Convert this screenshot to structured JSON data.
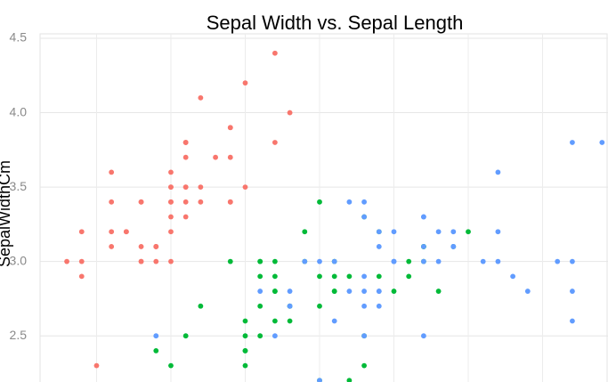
{
  "chart_data": {
    "type": "scatter",
    "title": "Sepal Width vs. Sepal Length",
    "y_label": "SepalWidthCm",
    "xlim": [
      4.12,
      7.94
    ],
    "ylim": [
      2.19,
      4.53
    ],
    "xticks": [
      4.5,
      5,
      5.5,
      6,
      6.5,
      7,
      7.5
    ],
    "yticks": [
      {
        "value": 2.5,
        "label": "2.5"
      },
      {
        "value": 3,
        "label": "3.0"
      },
      {
        "value": 3.5,
        "label": "3.5"
      },
      {
        "value": 4,
        "label": "4.0"
      },
      {
        "value": 4.5,
        "label": "4.5"
      }
    ],
    "grid": true,
    "series": [
      {
        "color": "#F8766D",
        "x": [
          5.1,
          4.9,
          4.7,
          4.6,
          5.0,
          5.4,
          4.6,
          5.0,
          4.4,
          4.9,
          5.4,
          4.8,
          4.8,
          4.3,
          5.8,
          5.7,
          5.4,
          5.1,
          5.7,
          5.1,
          5.4,
          5.1,
          4.6,
          5.1,
          4.8,
          5.0,
          5.0,
          5.2,
          5.2,
          4.7,
          4.8,
          5.4,
          5.2,
          5.5,
          4.9,
          5.0,
          5.5,
          4.9,
          4.4,
          5.1,
          5.0,
          4.5,
          4.4,
          5.0,
          5.1,
          4.8,
          5.1,
          4.6,
          5.3,
          5.0
        ],
        "values": [
          3.5,
          3.0,
          3.2,
          3.1,
          3.6,
          3.9,
          3.4,
          3.4,
          2.9,
          3.1,
          3.7,
          3.4,
          3.0,
          3.0,
          4.0,
          4.4,
          3.9,
          3.5,
          3.8,
          3.8,
          3.4,
          3.7,
          3.6,
          3.3,
          3.4,
          3.0,
          3.4,
          3.5,
          3.4,
          3.2,
          3.1,
          3.4,
          4.1,
          4.2,
          3.1,
          3.2,
          3.5,
          3.1,
          3.0,
          3.4,
          3.5,
          2.3,
          3.2,
          3.5,
          3.8,
          3.0,
          3.8,
          3.2,
          3.7,
          3.3
        ]
      },
      {
        "color": "#00BA38",
        "x": [
          7.0,
          6.4,
          6.9,
          5.5,
          6.5,
          5.7,
          6.3,
          4.9,
          6.6,
          5.2,
          5.9,
          6.0,
          6.1,
          5.6,
          6.7,
          5.6,
          5.8,
          6.2,
          5.6,
          5.9,
          6.1,
          6.3,
          6.1,
          6.4,
          6.6,
          6.8,
          6.7,
          6.0,
          5.7,
          5.5,
          5.5,
          5.8,
          6.0,
          5.4,
          6.0,
          6.7,
          6.3,
          5.6,
          5.5,
          5.5,
          6.1,
          5.8,
          5.0,
          5.6,
          5.7,
          5.7,
          6.2,
          5.1,
          5.7
        ],
        "values": [
          3.2,
          3.2,
          3.1,
          2.3,
          2.8,
          2.8,
          3.3,
          2.4,
          2.9,
          2.7,
          3.0,
          2.2,
          2.9,
          2.9,
          3.1,
          3.0,
          2.7,
          2.2,
          2.5,
          3.2,
          2.8,
          2.5,
          2.8,
          2.9,
          3.0,
          2.8,
          3.0,
          2.9,
          2.6,
          2.4,
          2.4,
          2.7,
          2.7,
          3.0,
          3.4,
          3.1,
          2.3,
          3.0,
          2.5,
          2.6,
          3.0,
          2.6,
          2.3,
          2.7,
          3.0,
          2.9,
          2.9,
          2.5,
          2.8
        ]
      },
      {
        "color": "#619CFF",
        "x": [
          6.3,
          5.8,
          7.1,
          6.3,
          6.5,
          7.6,
          4.9,
          7.3,
          6.7,
          7.2,
          6.5,
          6.4,
          6.8,
          5.7,
          5.8,
          6.4,
          6.5,
          7.7,
          7.7,
          6.0,
          6.9,
          5.6,
          7.7,
          6.3,
          6.7,
          7.2,
          6.2,
          6.1,
          6.4,
          7.2,
          7.4,
          7.9,
          6.4,
          6.3,
          6.1,
          7.7,
          6.3,
          6.4,
          6.0,
          6.9,
          6.7,
          6.9,
          5.8,
          6.8,
          6.7,
          6.7,
          6.3,
          6.5,
          6.2,
          5.9
        ],
        "values": [
          3.3,
          2.7,
          3.0,
          2.9,
          3.0,
          3.0,
          2.5,
          2.9,
          2.5,
          3.6,
          3.2,
          2.7,
          3.0,
          2.5,
          2.8,
          3.2,
          3.0,
          3.8,
          2.6,
          2.2,
          3.2,
          2.8,
          2.8,
          2.7,
          3.3,
          3.2,
          2.8,
          3.0,
          2.8,
          3.0,
          2.8,
          3.8,
          2.8,
          2.8,
          2.6,
          3.0,
          3.4,
          3.1,
          3.0,
          3.1,
          3.1,
          3.1,
          2.7,
          3.2,
          3.3,
          3.0,
          2.5,
          3.0,
          3.4,
          3.0
        ]
      }
    ]
  }
}
